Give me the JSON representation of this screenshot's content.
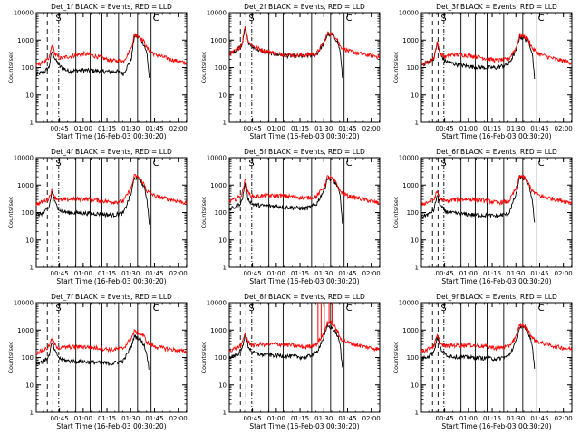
{
  "figure": {
    "ylabel": "Counts/sec",
    "xlabel": "Start Time (16-Feb-03 00:30:20)",
    "ytick_labels": [
      "1",
      "10",
      "100",
      "1000",
      "10000"
    ],
    "xtick_labels": [
      "00:45",
      "01:00",
      "01:15",
      "01:30",
      "01:45",
      "02:00"
    ],
    "colors": {
      "events": "#000000",
      "lld": "#ff0000",
      "axes": "#000000"
    }
  },
  "chart_data": [
    {
      "type": "line",
      "title": "Det_1f BLACK = Events, RED = LLD",
      "xlabel": "Start Time (16-Feb-03 00:30:20)",
      "ylabel": "Counts/sec",
      "yscale": "log",
      "ylim": [
        1,
        10000
      ],
      "xlim_minutes": [
        0,
        95
      ],
      "ytick_labels": [
        "1",
        "10",
        "100",
        "1000",
        "10000"
      ],
      "xtick_labels": [
        "00:45",
        "01:00",
        "01:15",
        "01:30",
        "01:45",
        "02:00"
      ],
      "markers_text": [
        "S",
        "C"
      ],
      "series": [
        {
          "name": "Events",
          "color": "#000000",
          "x": [
            0,
            5,
            8,
            10,
            12,
            15,
            20,
            30,
            40,
            48,
            50,
            55,
            60,
            62,
            65,
            68,
            70,
            71.5
          ],
          "y": [
            55,
            70,
            100,
            400,
            200,
            110,
            75,
            80,
            75,
            70,
            75,
            60,
            200,
            1400,
            1300,
            700,
            300,
            35
          ]
        },
        {
          "name": "LLD",
          "color": "#ff0000",
          "x": [
            0,
            5,
            8,
            10,
            12,
            15,
            20,
            30,
            40,
            48,
            50,
            55,
            60,
            62,
            65,
            68,
            70,
            75,
            85,
            95
          ],
          "y": [
            120,
            160,
            200,
            650,
            300,
            220,
            250,
            320,
            240,
            175,
            180,
            170,
            500,
            1600,
            1400,
            900,
            500,
            300,
            200,
            140
          ]
        }
      ]
    },
    {
      "type": "line",
      "title": "Det_2f BLACK = Events, RED = LLD",
      "xlabel": "Start Time (16-Feb-03 00:30:20)",
      "ylabel": "Counts/sec",
      "yscale": "log",
      "ylim": [
        1,
        10000
      ],
      "xlim_minutes": [
        0,
        95
      ],
      "ytick_labels": [
        "1",
        "10",
        "100",
        "1000",
        "10000"
      ],
      "xtick_labels": [
        "00:45",
        "01:00",
        "01:15",
        "01:30",
        "01:45",
        "02:00"
      ],
      "markers_text": [
        "S",
        "C"
      ],
      "series": [
        {
          "name": "Events",
          "color": "#000000",
          "x": [
            0,
            5,
            8,
            10,
            12,
            15,
            20,
            30,
            40,
            48,
            50,
            55,
            60,
            62,
            65,
            68,
            70,
            71.5
          ],
          "y": [
            300,
            450,
            700,
            3000,
            800,
            550,
            400,
            300,
            260,
            260,
            280,
            300,
            800,
            1600,
            1500,
            1000,
            400,
            40
          ]
        },
        {
          "name": "LLD",
          "color": "#ff0000",
          "x": [
            0,
            5,
            8,
            10,
            12,
            15,
            20,
            30,
            40,
            48,
            50,
            55,
            60,
            62,
            65,
            68,
            70,
            75,
            85,
            95
          ],
          "y": [
            300,
            450,
            700,
            3500,
            900,
            600,
            450,
            320,
            290,
            280,
            300,
            320,
            900,
            1800,
            1700,
            1200,
            600,
            400,
            300,
            250
          ]
        }
      ]
    },
    {
      "type": "line",
      "title": "Det_3f BLACK = Events, RED = LLD",
      "xlabel": "Start Time (16-Feb-03 00:30:20)",
      "ylabel": "Counts/sec",
      "yscale": "log",
      "ylim": [
        1,
        10000
      ],
      "xlim_minutes": [
        0,
        95
      ],
      "ytick_labels": [
        "1",
        "10",
        "100",
        "1000",
        "10000"
      ],
      "xtick_labels": [
        "00:45",
        "01:00",
        "01:15",
        "01:30",
        "01:45",
        "02:00"
      ],
      "markers_text": [
        "S",
        "C"
      ],
      "series": [
        {
          "name": "Events",
          "color": "#000000",
          "x": [
            0,
            5,
            8,
            10,
            12,
            15,
            20,
            30,
            40,
            48,
            50,
            55,
            60,
            62,
            65,
            68,
            70,
            71.5
          ],
          "y": [
            120,
            160,
            220,
            800,
            300,
            170,
            140,
            110,
            100,
            100,
            110,
            130,
            450,
            1300,
            1200,
            800,
            350,
            40
          ]
        },
        {
          "name": "LLD",
          "color": "#ff0000",
          "x": [
            0,
            5,
            8,
            10,
            12,
            15,
            20,
            30,
            40,
            48,
            50,
            55,
            60,
            62,
            65,
            68,
            70,
            75,
            85,
            95
          ],
          "y": [
            130,
            170,
            230,
            850,
            320,
            240,
            300,
            280,
            220,
            180,
            190,
            200,
            550,
            1500,
            1400,
            950,
            500,
            300,
            200,
            150
          ]
        }
      ]
    },
    {
      "type": "line",
      "title": "Det_4f BLACK = Events, RED = LLD",
      "xlabel": "Start Time (16-Feb-03 00:30:20)",
      "ylabel": "Counts/sec",
      "yscale": "log",
      "ylim": [
        1,
        10000
      ],
      "xlim_minutes": [
        0,
        95
      ],
      "ytick_labels": [
        "1",
        "10",
        "100",
        "1000",
        "10000"
      ],
      "xtick_labels": [
        "00:45",
        "01:00",
        "01:15",
        "01:30",
        "01:45",
        "02:00"
      ],
      "markers_text": [
        "S",
        "C"
      ],
      "series": [
        {
          "name": "Events",
          "color": "#000000",
          "x": [
            0,
            5,
            8,
            10,
            12,
            15,
            20,
            30,
            40,
            48,
            50,
            55,
            60,
            62,
            65,
            68,
            70,
            71.5
          ],
          "y": [
            80,
            100,
            150,
            600,
            220,
            120,
            100,
            95,
            90,
            80,
            85,
            95,
            500,
            1900,
            1700,
            900,
            300,
            35
          ]
        },
        {
          "name": "LLD",
          "color": "#ff0000",
          "x": [
            0,
            5,
            8,
            10,
            12,
            15,
            20,
            30,
            40,
            48,
            50,
            55,
            60,
            62,
            65,
            68,
            70,
            75,
            85,
            95
          ],
          "y": [
            200,
            260,
            330,
            700,
            350,
            280,
            300,
            320,
            280,
            240,
            250,
            260,
            800,
            2200,
            1900,
            1100,
            600,
            400,
            300,
            220
          ]
        }
      ]
    },
    {
      "type": "line",
      "title": "Det_5f BLACK = Events, RED = LLD",
      "xlabel": "Start Time (16-Feb-03 00:30:20)",
      "ylabel": "Counts/sec",
      "yscale": "log",
      "ylim": [
        1,
        10000
      ],
      "xlim_minutes": [
        0,
        95
      ],
      "ytick_labels": [
        "1",
        "10",
        "100",
        "1000",
        "10000"
      ],
      "xtick_labels": [
        "00:45",
        "01:00",
        "01:15",
        "01:30",
        "01:45",
        "02:00"
      ],
      "markers_text": [
        "S",
        "C"
      ],
      "series": [
        {
          "name": "Events",
          "color": "#000000",
          "x": [
            0,
            5,
            8,
            10,
            12,
            15,
            20,
            30,
            40,
            48,
            50,
            55,
            60,
            62,
            65,
            68,
            70,
            71.5
          ],
          "y": [
            130,
            170,
            260,
            1200,
            300,
            200,
            180,
            170,
            150,
            140,
            150,
            200,
            700,
            1800,
            1600,
            1000,
            400,
            40
          ]
        },
        {
          "name": "LLD",
          "color": "#ff0000",
          "x": [
            0,
            5,
            8,
            10,
            12,
            15,
            20,
            30,
            40,
            48,
            50,
            55,
            60,
            62,
            65,
            68,
            70,
            75,
            85,
            95
          ],
          "y": [
            250,
            330,
            450,
            1800,
            500,
            380,
            400,
            420,
            380,
            340,
            350,
            380,
            900,
            2000,
            1800,
            1100,
            600,
            400,
            300,
            220
          ]
        }
      ]
    },
    {
      "type": "line",
      "title": "Det_6f BLACK = Events, RED = LLD",
      "xlabel": "Start Time (16-Feb-03 00:30:20)",
      "ylabel": "Counts/sec",
      "yscale": "log",
      "ylim": [
        1,
        10000
      ],
      "xlim_minutes": [
        0,
        95
      ],
      "ytick_labels": [
        "1",
        "10",
        "100",
        "1000",
        "10000"
      ],
      "xtick_labels": [
        "00:45",
        "01:00",
        "01:15",
        "01:30",
        "01:45",
        "02:00"
      ],
      "markers_text": [
        "S",
        "C"
      ],
      "series": [
        {
          "name": "Events",
          "color": "#000000",
          "x": [
            0,
            5,
            8,
            10,
            12,
            15,
            20,
            30,
            40,
            48,
            50,
            55,
            60,
            62,
            65,
            68,
            70,
            71.5
          ],
          "y": [
            70,
            90,
            130,
            450,
            180,
            110,
            95,
            85,
            80,
            75,
            80,
            90,
            500,
            2000,
            1700,
            900,
            300,
            35
          ]
        },
        {
          "name": "LLD",
          "color": "#ff0000",
          "x": [
            0,
            5,
            8,
            10,
            12,
            15,
            20,
            30,
            40,
            48,
            50,
            55,
            60,
            62,
            65,
            68,
            70,
            75,
            85,
            95
          ],
          "y": [
            200,
            250,
            300,
            600,
            320,
            260,
            290,
            310,
            280,
            230,
            240,
            250,
            800,
            2200,
            1900,
            1100,
            600,
            400,
            300,
            230
          ]
        }
      ]
    },
    {
      "type": "line",
      "title": "Det_7f BLACK = Events, RED = LLD",
      "xlabel": "Start Time (16-Feb-03 00:30:20)",
      "ylabel": "Counts/sec",
      "yscale": "log",
      "ylim": [
        1,
        10000
      ],
      "xlim_minutes": [
        0,
        95
      ],
      "ytick_labels": [
        "1",
        "10",
        "100",
        "1000",
        "10000"
      ],
      "xtick_labels": [
        "00:45",
        "01:00",
        "01:15",
        "01:30",
        "01:45",
        "02:00"
      ],
      "markers_text": [
        "S",
        "C"
      ],
      "series": [
        {
          "name": "Events",
          "color": "#000000",
          "x": [
            0,
            5,
            8,
            10,
            12,
            15,
            20,
            30,
            40,
            48,
            50,
            55,
            60,
            62,
            65,
            68,
            70,
            71.5
          ],
          "y": [
            60,
            75,
            110,
            350,
            160,
            90,
            75,
            70,
            65,
            60,
            65,
            75,
            250,
            600,
            500,
            300,
            120,
            30
          ]
        },
        {
          "name": "LLD",
          "color": "#ff0000",
          "x": [
            0,
            5,
            8,
            10,
            12,
            15,
            20,
            30,
            40,
            48,
            50,
            55,
            60,
            62,
            65,
            68,
            70,
            75,
            85,
            95
          ],
          "y": [
            150,
            190,
            250,
            500,
            280,
            220,
            240,
            250,
            220,
            190,
            200,
            220,
            500,
            900,
            800,
            600,
            350,
            250,
            200,
            160
          ]
        }
      ]
    },
    {
      "type": "line",
      "title": "Det_8f BLACK = Events, RED = LLD",
      "xlabel": "Start Time (16-Feb-03 00:30:20)",
      "ylabel": "Counts/sec",
      "yscale": "log",
      "ylim": [
        1,
        10000
      ],
      "xlim_minutes": [
        0,
        95
      ],
      "ytick_labels": [
        "1",
        "10",
        "100",
        "1000",
        "10000"
      ],
      "xtick_labels": [
        "00:45",
        "01:00",
        "01:15",
        "01:30",
        "01:45",
        "02:00"
      ],
      "markers_text": [
        "S",
        "C"
      ],
      "series": [
        {
          "name": "Events",
          "color": "#000000",
          "x": [
            0,
            5,
            8,
            10,
            12,
            15,
            20,
            30,
            40,
            48,
            50,
            55,
            60,
            62,
            65,
            68,
            70,
            71.5
          ],
          "y": [
            100,
            130,
            200,
            700,
            250,
            150,
            130,
            120,
            110,
            100,
            110,
            150,
            600,
            1400,
            1200,
            700,
            300,
            35
          ]
        },
        {
          "name": "LLD",
          "color": "#ff0000",
          "x": [
            0,
            5,
            8,
            10,
            12,
            15,
            20,
            30,
            40,
            48,
            50,
            55,
            60,
            62,
            65,
            68,
            70,
            75,
            85,
            95
          ],
          "y": [
            180,
            230,
            300,
            800,
            350,
            280,
            300,
            310,
            280,
            240,
            260,
            300,
            800,
            2000,
            1800,
            1000,
            500,
            350,
            250,
            200
          ]
        }
      ],
      "spikes_lld_minutes": [
        56,
        58,
        60,
        63,
        65
      ]
    },
    {
      "type": "line",
      "title": "Det_9f BLACK = Events, RED = LLD",
      "xlabel": "Start Time (16-Feb-03 00:30:20)",
      "ylabel": "Counts/sec",
      "yscale": "log",
      "ylim": [
        1,
        10000
      ],
      "xlim_minutes": [
        0,
        95
      ],
      "ytick_labels": [
        "1",
        "10",
        "100",
        "1000",
        "10000"
      ],
      "xtick_labels": [
        "00:45",
        "01:00",
        "01:15",
        "01:30",
        "01:45",
        "02:00"
      ],
      "markers_text": [
        "S",
        "C"
      ],
      "series": [
        {
          "name": "Events",
          "color": "#000000",
          "x": [
            0,
            5,
            8,
            10,
            12,
            15,
            20,
            30,
            40,
            48,
            50,
            55,
            60,
            62,
            65,
            68,
            70,
            71.5
          ],
          "y": [
            90,
            120,
            170,
            550,
            220,
            130,
            110,
            100,
            95,
            90,
            95,
            110,
            400,
            1300,
            1200,
            700,
            300,
            35
          ]
        },
        {
          "name": "LLD",
          "color": "#ff0000",
          "x": [
            0,
            5,
            8,
            10,
            12,
            15,
            20,
            30,
            40,
            48,
            50,
            55,
            60,
            62,
            65,
            68,
            70,
            75,
            85,
            95
          ],
          "y": [
            170,
            210,
            270,
            650,
            330,
            260,
            280,
            290,
            260,
            220,
            230,
            250,
            600,
            1600,
            1400,
            900,
            500,
            350,
            250,
            200
          ]
        }
      ]
    }
  ]
}
